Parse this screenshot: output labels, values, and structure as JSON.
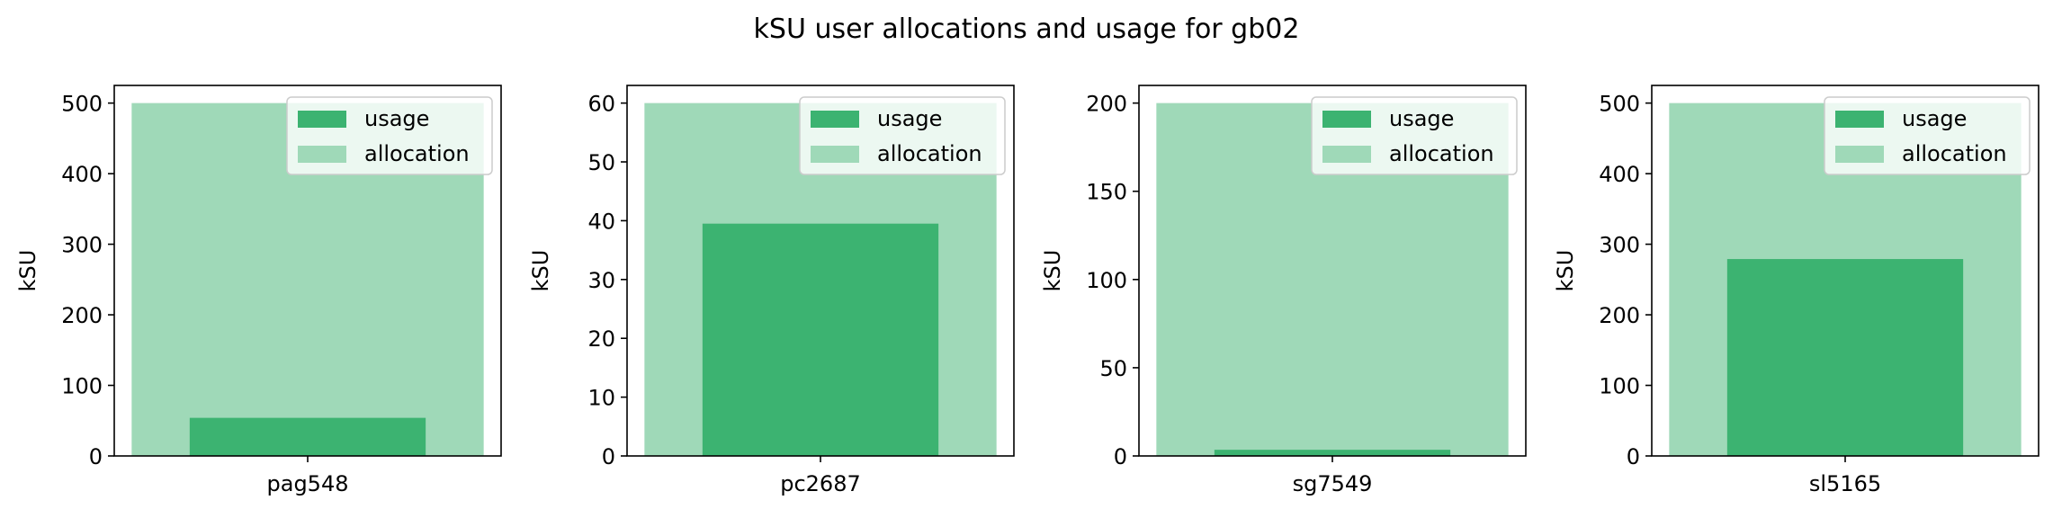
{
  "figure": {
    "title": "kSU user allocations and usage for gb02"
  },
  "colors": {
    "usage": "#3cb371",
    "allocation": "#9fd9b8",
    "legend_bg": "#ffffff",
    "legend_edge": "#cccccc"
  },
  "chart_data": [
    {
      "type": "bar",
      "categories": [
        "pag548"
      ],
      "series": [
        {
          "name": "usage",
          "values": [
            54
          ]
        },
        {
          "name": "allocation",
          "values": [
            500
          ]
        }
      ],
      "ylabel": "kSU",
      "ylim": [
        0,
        525
      ],
      "yticks": [
        0,
        100,
        200,
        300,
        400,
        500
      ],
      "legend_placement": "top-right"
    },
    {
      "type": "bar",
      "categories": [
        "pc2687"
      ],
      "series": [
        {
          "name": "usage",
          "values": [
            39.5
          ]
        },
        {
          "name": "allocation",
          "values": [
            60
          ]
        }
      ],
      "ylabel": "kSU",
      "ylim": [
        0,
        63
      ],
      "yticks": [
        0,
        10,
        20,
        30,
        40,
        50,
        60
      ],
      "legend_placement": "top-right"
    },
    {
      "type": "bar",
      "categories": [
        "sg7549"
      ],
      "series": [
        {
          "name": "usage",
          "values": [
            3.5
          ]
        },
        {
          "name": "allocation",
          "values": [
            200
          ]
        }
      ],
      "ylabel": "kSU",
      "ylim": [
        0,
        210
      ],
      "yticks": [
        0,
        50,
        100,
        150,
        200
      ],
      "legend_placement": "top-right"
    },
    {
      "type": "bar",
      "categories": [
        "sl5165"
      ],
      "series": [
        {
          "name": "usage",
          "values": [
            279
          ]
        },
        {
          "name": "allocation",
          "values": [
            500
          ]
        }
      ],
      "ylabel": "kSU",
      "ylim": [
        0,
        525
      ],
      "yticks": [
        0,
        100,
        200,
        300,
        400,
        500
      ],
      "legend_placement": "top-right"
    }
  ]
}
